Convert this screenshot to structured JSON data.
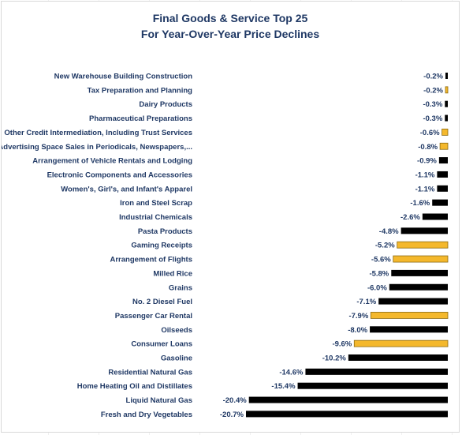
{
  "chart_data": {
    "type": "bar",
    "orientation": "horizontal",
    "title": "Final Goods & Service Top 25",
    "subtitle": "For Year-Over-Year Price Declines",
    "xlabel": "",
    "ylabel": "",
    "grid": false,
    "legend": "none",
    "value_format": "percent",
    "xlim": [
      -20.7,
      0
    ],
    "colors": {
      "default": "#000000",
      "highlight": "#f4b82c",
      "highlight_border": "#8c6a10",
      "text": "#1f3864"
    },
    "categories": [
      "New Warehouse Building Construction",
      "Tax Preparation and Planning",
      "Dairy Products",
      "Pharmaceutical Preparations",
      "Other Credit Intermediation, Including Trust Services",
      "Advertising Space Sales in Periodicals, Newspapers,...",
      "Arrangement of Vehicle Rentals and Lodging",
      "Electronic Components and Accessories",
      "Women's, Girl's, and Infant's Apparel",
      "Iron and Steel Scrap",
      "Industrial Chemicals",
      "Pasta Products",
      "Gaming Receipts",
      "Arrangement of Flights",
      "Milled Rice",
      "Grains",
      "No. 2 Diesel Fuel",
      "Passenger Car Rental",
      "Oilseeds",
      "Consumer Loans",
      "Gasoline",
      "Residential Natural Gas",
      "Home Heating Oil and Distillates",
      "Liquid Natural Gas",
      "Fresh and Dry Vegetables"
    ],
    "values": [
      -0.2,
      -0.2,
      -0.3,
      -0.3,
      -0.6,
      -0.8,
      -0.9,
      -1.1,
      -1.1,
      -1.6,
      -2.6,
      -4.8,
      -5.2,
      -5.6,
      -5.8,
      -6.0,
      -7.1,
      -7.9,
      -8.0,
      -9.6,
      -10.2,
      -14.6,
      -15.4,
      -20.4,
      -20.7
    ],
    "value_labels": [
      "-0.2%",
      "-0.2%",
      "-0.3%",
      "-0.3%",
      "-0.6%",
      "-0.8%",
      "-0.9%",
      "-1.1%",
      "-1.1%",
      "-1.6%",
      "-2.6%",
      "-4.8%",
      "-5.2%",
      "-5.6%",
      "-5.8%",
      "-6.0%",
      "-7.1%",
      "-7.9%",
      "-8.0%",
      "-9.6%",
      "-10.2%",
      "-14.6%",
      "-15.4%",
      "-20.4%",
      "-20.7%"
    ],
    "highlighted": [
      false,
      true,
      false,
      false,
      true,
      true,
      false,
      false,
      false,
      false,
      false,
      false,
      true,
      true,
      false,
      false,
      false,
      true,
      false,
      true,
      false,
      false,
      false,
      false,
      false
    ]
  }
}
